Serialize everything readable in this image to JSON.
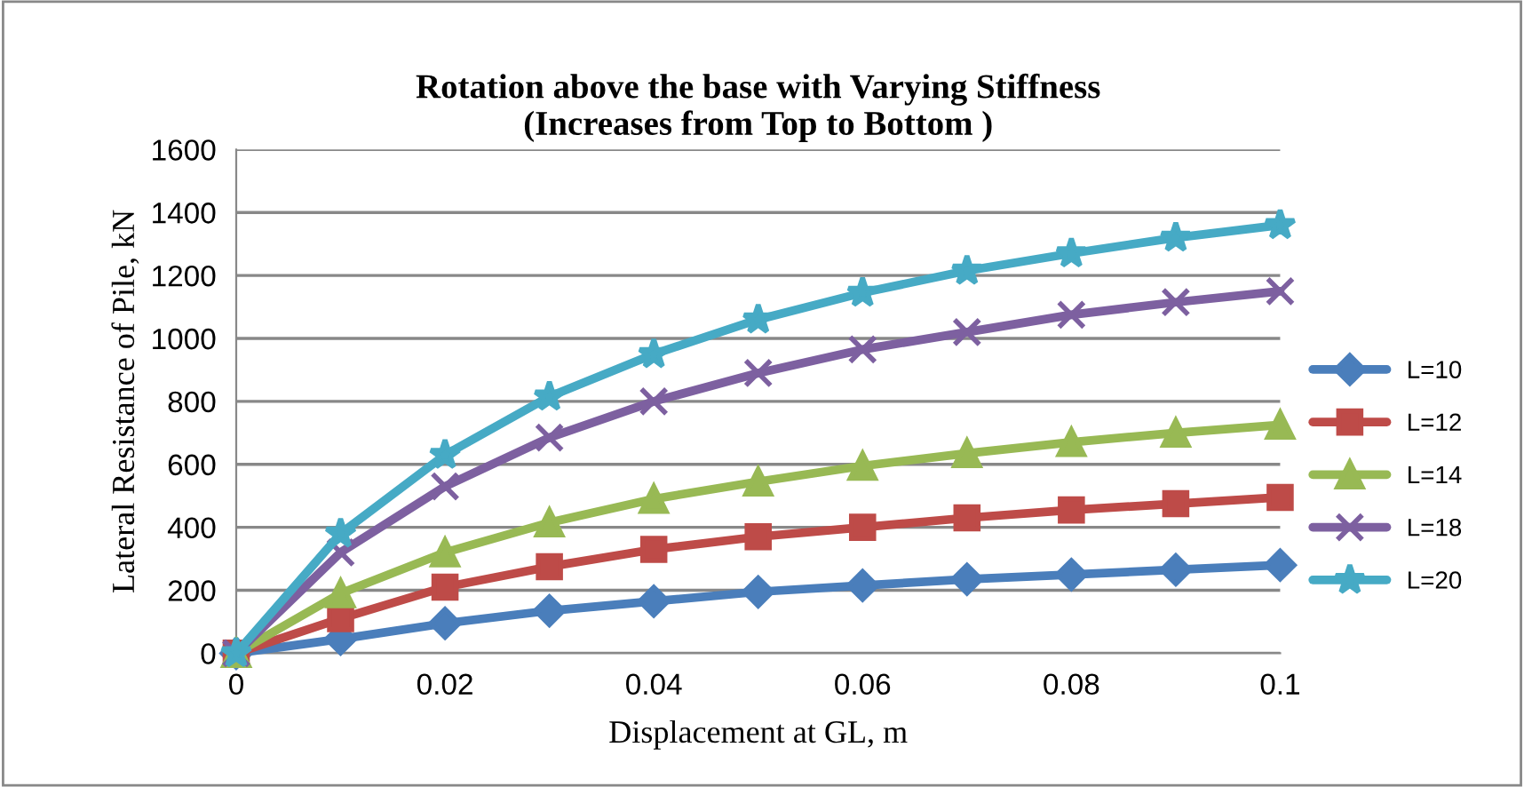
{
  "chart_data": {
    "type": "line",
    "title": "Rotation above the base with Varying Stiffness\n(Increases from Top to Bottom )",
    "xlabel": "Displacement at GL, m",
    "ylabel": "Lateral Resistance of Pile, kN",
    "x": [
      0,
      0.01,
      0.02,
      0.03,
      0.04,
      0.05,
      0.06,
      0.07,
      0.08,
      0.09,
      0.1
    ],
    "xlim": [
      0,
      0.1
    ],
    "xticks": [
      0,
      0.02,
      0.04,
      0.06,
      0.08,
      0.1
    ],
    "ylim": [
      0,
      1600
    ],
    "yticks": [
      0,
      200,
      400,
      600,
      800,
      1000,
      1200,
      1400,
      1600
    ],
    "grid": "y",
    "legend": "right",
    "series": [
      {
        "name": "L=10",
        "color": "#4a7ebb",
        "marker": "diamond",
        "values": [
          0,
          45,
          95,
          135,
          165,
          195,
          215,
          235,
          250,
          265,
          280
        ]
      },
      {
        "name": "L=12",
        "color": "#be4b48",
        "marker": "square",
        "values": [
          0,
          110,
          210,
          275,
          330,
          370,
          400,
          430,
          455,
          475,
          495
        ]
      },
      {
        "name": "L=14",
        "color": "#98b954",
        "marker": "triangle",
        "values": [
          0,
          190,
          320,
          415,
          490,
          545,
          595,
          635,
          670,
          700,
          725
        ]
      },
      {
        "name": "L=18",
        "color": "#7d60a0",
        "marker": "cross",
        "values": [
          0,
          320,
          530,
          685,
          800,
          890,
          965,
          1020,
          1075,
          1115,
          1150
        ]
      },
      {
        "name": "L=20",
        "color": "#46aac5",
        "marker": "star",
        "values": [
          0,
          380,
          630,
          815,
          950,
          1060,
          1145,
          1215,
          1270,
          1320,
          1360
        ]
      }
    ]
  }
}
